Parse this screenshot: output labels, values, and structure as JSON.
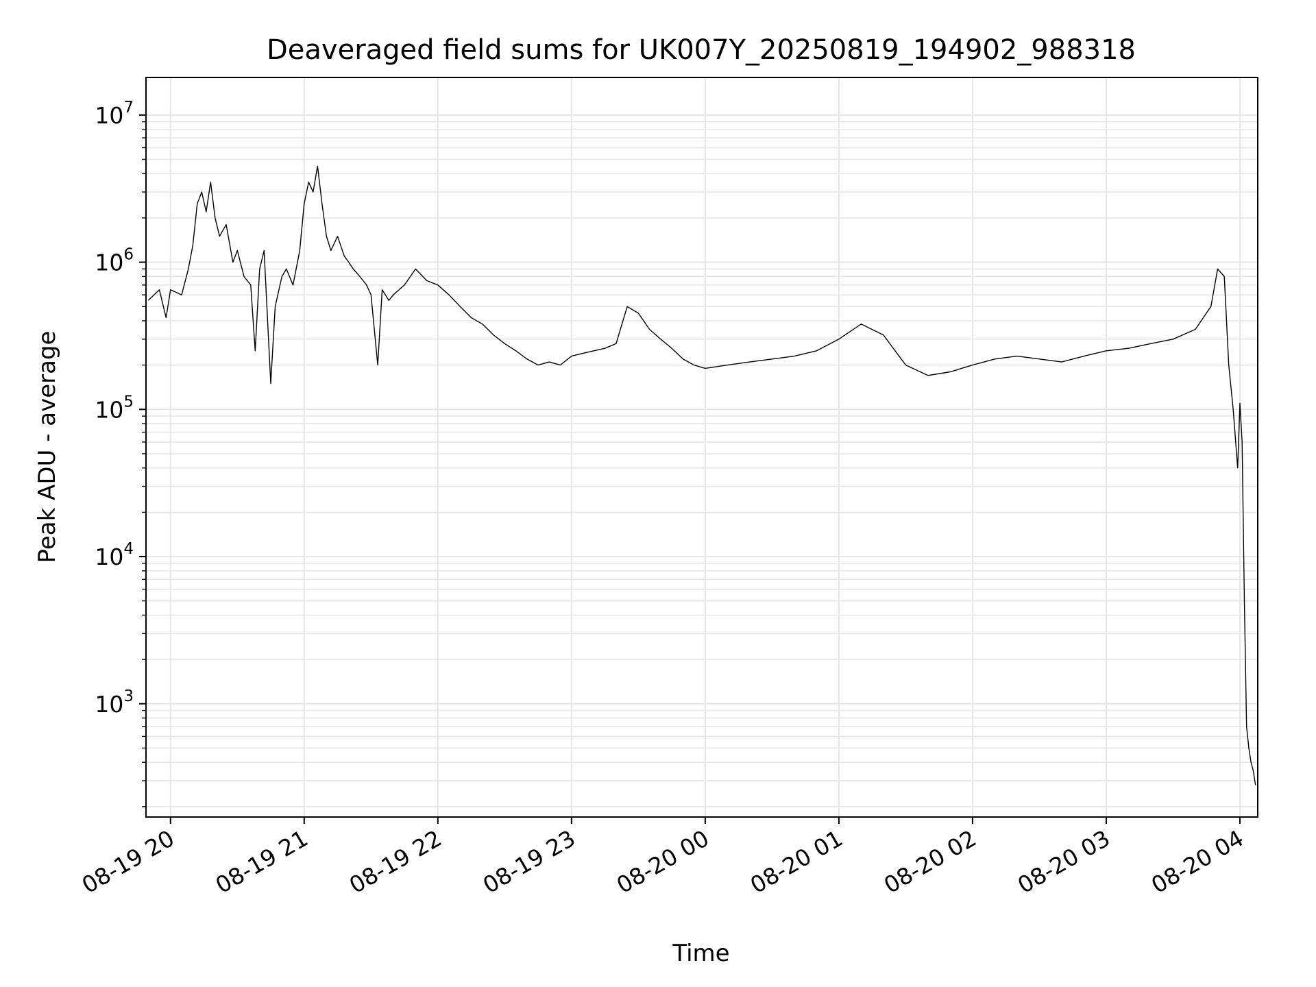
{
  "chart_data": {
    "type": "line",
    "title": "Deaveraged field sums for UK007Y_20250819_194902_988318",
    "xlabel": "Time",
    "ylabel": "Peak ADU - average",
    "yscale": "log",
    "grid": true,
    "grid_minor": true,
    "line_color": "#000000",
    "grid_color": "#e6e6e6",
    "xlim": [
      "2025-08-19 19:49",
      "2025-08-20 04:08"
    ],
    "ylim": [
      170,
      18000000
    ],
    "x_ticks": [
      "2025-08-19 20:00",
      "2025-08-19 21:00",
      "2025-08-19 22:00",
      "2025-08-19 23:00",
      "2025-08-20 00:00",
      "2025-08-20 01:00",
      "2025-08-20 02:00",
      "2025-08-20 03:00",
      "2025-08-20 04:00"
    ],
    "x_tick_labels": [
      "08-19 20",
      "08-19 21",
      "08-19 22",
      "08-19 23",
      "08-20 00",
      "08-20 01",
      "08-20 02",
      "08-20 03",
      "08-20 04"
    ],
    "y_ticks": [
      1000,
      10000,
      100000,
      1000000,
      10000000
    ],
    "y_tick_labels": [
      {
        "base": "10",
        "exp": "3"
      },
      {
        "base": "10",
        "exp": "4"
      },
      {
        "base": "10",
        "exp": "5"
      },
      {
        "base": "10",
        "exp": "6"
      },
      {
        "base": "10",
        "exp": "7"
      }
    ],
    "series": [
      {
        "values": [
          [
            "2025-08-19 19:50",
            550000
          ],
          [
            "2025-08-19 19:55",
            650000
          ],
          [
            "2025-08-19 19:58",
            420000
          ],
          [
            "2025-08-19 20:00",
            650000
          ],
          [
            "2025-08-19 20:05",
            600000
          ],
          [
            "2025-08-19 20:08",
            900000
          ],
          [
            "2025-08-19 20:10",
            1300000
          ],
          [
            "2025-08-19 20:12",
            2500000
          ],
          [
            "2025-08-19 20:14",
            3000000
          ],
          [
            "2025-08-19 20:16",
            2200000
          ],
          [
            "2025-08-19 20:18",
            3500000
          ],
          [
            "2025-08-19 20:20",
            2000000
          ],
          [
            "2025-08-19 20:22",
            1500000
          ],
          [
            "2025-08-19 20:25",
            1800000
          ],
          [
            "2025-08-19 20:28",
            1000000
          ],
          [
            "2025-08-19 20:30",
            1200000
          ],
          [
            "2025-08-19 20:33",
            800000
          ],
          [
            "2025-08-19 20:36",
            700000
          ],
          [
            "2025-08-19 20:38",
            250000
          ],
          [
            "2025-08-19 20:40",
            900000
          ],
          [
            "2025-08-19 20:42",
            1200000
          ],
          [
            "2025-08-19 20:45",
            150000
          ],
          [
            "2025-08-19 20:47",
            500000
          ],
          [
            "2025-08-19 20:50",
            800000
          ],
          [
            "2025-08-19 20:52",
            900000
          ],
          [
            "2025-08-19 20:55",
            700000
          ],
          [
            "2025-08-19 20:58",
            1200000
          ],
          [
            "2025-08-19 21:00",
            2500000
          ],
          [
            "2025-08-19 21:02",
            3500000
          ],
          [
            "2025-08-19 21:04",
            3000000
          ],
          [
            "2025-08-19 21:06",
            4500000
          ],
          [
            "2025-08-19 21:08",
            2500000
          ],
          [
            "2025-08-19 21:10",
            1500000
          ],
          [
            "2025-08-19 21:12",
            1200000
          ],
          [
            "2025-08-19 21:15",
            1500000
          ],
          [
            "2025-08-19 21:18",
            1100000
          ],
          [
            "2025-08-19 21:20",
            1000000
          ],
          [
            "2025-08-19 21:22",
            900000
          ],
          [
            "2025-08-19 21:25",
            800000
          ],
          [
            "2025-08-19 21:28",
            700000
          ],
          [
            "2025-08-19 21:30",
            600000
          ],
          [
            "2025-08-19 21:33",
            200000
          ],
          [
            "2025-08-19 21:35",
            650000
          ],
          [
            "2025-08-19 21:38",
            550000
          ],
          [
            "2025-08-19 21:40",
            600000
          ],
          [
            "2025-08-19 21:45",
            700000
          ],
          [
            "2025-08-19 21:50",
            900000
          ],
          [
            "2025-08-19 21:55",
            750000
          ],
          [
            "2025-08-19 22:00",
            700000
          ],
          [
            "2025-08-19 22:05",
            600000
          ],
          [
            "2025-08-19 22:10",
            500000
          ],
          [
            "2025-08-19 22:15",
            420000
          ],
          [
            "2025-08-19 22:20",
            380000
          ],
          [
            "2025-08-19 22:25",
            320000
          ],
          [
            "2025-08-19 22:30",
            280000
          ],
          [
            "2025-08-19 22:35",
            250000
          ],
          [
            "2025-08-19 22:40",
            220000
          ],
          [
            "2025-08-19 22:45",
            200000
          ],
          [
            "2025-08-19 22:50",
            210000
          ],
          [
            "2025-08-19 22:55",
            200000
          ],
          [
            "2025-08-19 23:00",
            230000
          ],
          [
            "2025-08-19 23:05",
            240000
          ],
          [
            "2025-08-19 23:10",
            250000
          ],
          [
            "2025-08-19 23:15",
            260000
          ],
          [
            "2025-08-19 23:20",
            280000
          ],
          [
            "2025-08-19 23:25",
            500000
          ],
          [
            "2025-08-19 23:30",
            450000
          ],
          [
            "2025-08-19 23:35",
            350000
          ],
          [
            "2025-08-19 23:40",
            300000
          ],
          [
            "2025-08-19 23:45",
            260000
          ],
          [
            "2025-08-19 23:50",
            220000
          ],
          [
            "2025-08-19 23:55",
            200000
          ],
          [
            "2025-08-20 00:00",
            190000
          ],
          [
            "2025-08-20 00:10",
            200000
          ],
          [
            "2025-08-20 00:20",
            210000
          ],
          [
            "2025-08-20 00:30",
            220000
          ],
          [
            "2025-08-20 00:40",
            230000
          ],
          [
            "2025-08-20 00:50",
            250000
          ],
          [
            "2025-08-20 01:00",
            300000
          ],
          [
            "2025-08-20 01:10",
            380000
          ],
          [
            "2025-08-20 01:20",
            320000
          ],
          [
            "2025-08-20 01:30",
            200000
          ],
          [
            "2025-08-20 01:40",
            170000
          ],
          [
            "2025-08-20 01:50",
            180000
          ],
          [
            "2025-08-20 02:00",
            200000
          ],
          [
            "2025-08-20 02:10",
            220000
          ],
          [
            "2025-08-20 02:20",
            230000
          ],
          [
            "2025-08-20 02:30",
            220000
          ],
          [
            "2025-08-20 02:40",
            210000
          ],
          [
            "2025-08-20 02:50",
            230000
          ],
          [
            "2025-08-20 03:00",
            250000
          ],
          [
            "2025-08-20 03:10",
            260000
          ],
          [
            "2025-08-20 03:20",
            280000
          ],
          [
            "2025-08-20 03:30",
            300000
          ],
          [
            "2025-08-20 03:40",
            350000
          ],
          [
            "2025-08-20 03:47",
            500000
          ],
          [
            "2025-08-20 03:50",
            900000
          ],
          [
            "2025-08-20 03:53",
            800000
          ],
          [
            "2025-08-20 03:55",
            200000
          ],
          [
            "2025-08-20 03:57",
            100000
          ],
          [
            "2025-08-20 03:59",
            40000
          ],
          [
            "2025-08-20 04:00",
            110000
          ],
          [
            "2025-08-20 04:01",
            60000
          ],
          [
            "2025-08-20 04:02",
            5000
          ],
          [
            "2025-08-20 04:03",
            700
          ],
          [
            "2025-08-20 04:04",
            500
          ],
          [
            "2025-08-20 04:05",
            400
          ],
          [
            "2025-08-20 04:06",
            350
          ],
          [
            "2025-08-20 04:07",
            280
          ]
        ]
      }
    ]
  }
}
